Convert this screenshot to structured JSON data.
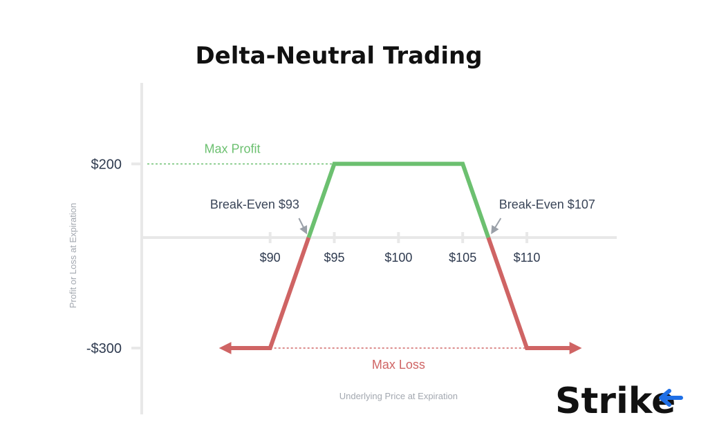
{
  "colors": {
    "profit": "#6cc070",
    "loss": "#cf6464",
    "axis": "#e8e8e8",
    "text": "#2e3a4f",
    "brand_blue": "#1f6fe6"
  },
  "logo": {
    "text": "Strike"
  },
  "chart_data": {
    "type": "line",
    "title": "Delta-Neutral Trading",
    "xlabel": "Underlying Price at Expiration",
    "ylabel": "Profit or Loss at Expiration",
    "x_ticks": [
      "$90",
      "$95",
      "$100",
      "$105",
      "$110"
    ],
    "x_tick_values": [
      90,
      95,
      100,
      105,
      110
    ],
    "y_ticks": [
      "$200",
      "-$300"
    ],
    "y_tick_values": [
      200,
      -300
    ],
    "xlim": [
      80,
      117
    ],
    "ylim": [
      -480,
      420
    ],
    "series": [
      {
        "x": [
          86.5,
          90,
          95,
          105,
          110,
          113.8
        ],
        "y": [
          -300,
          -300,
          200,
          200,
          -300,
          -300
        ]
      }
    ],
    "breakeven": [
      93,
      107
    ],
    "max_profit": 200,
    "max_loss": -300,
    "annotations": {
      "max_profit": "Max Profit",
      "max_loss": "Max Loss",
      "breakeven_left": "Break-Even $93",
      "breakeven_right": "Break-Even $107"
    },
    "grid": false
  }
}
